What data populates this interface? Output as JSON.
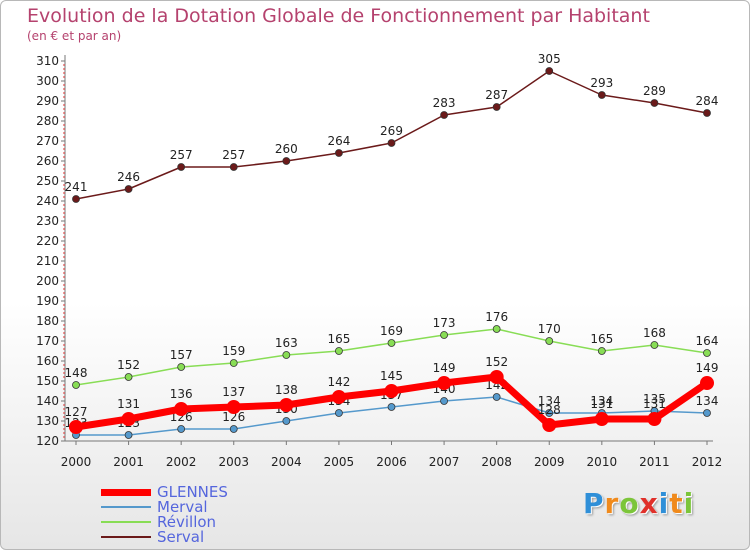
{
  "header": {
    "title": "Evolution de la Dotation Globale de Fonctionnement par Habitant",
    "subtitle": "(en € et par an)"
  },
  "brand": {
    "logo_letters": [
      {
        "ch": "P",
        "color": "#2f8fd8"
      },
      {
        "ch": "r",
        "color": "#f08a1c"
      },
      {
        "ch": "o",
        "color": "#7cc53a"
      },
      {
        "ch": "x",
        "color": "#e0302a"
      },
      {
        "ch": "i",
        "color": "#2f8fd8"
      },
      {
        "ch": "t",
        "color": "#f08a1c"
      },
      {
        "ch": "i",
        "color": "#7cc53a"
      }
    ]
  },
  "chart_data": {
    "type": "line",
    "title": "Evolution de la Dotation Globale de Fonctionnement par Habitant",
    "subtitle": "(en € et par an)",
    "x": [
      2000,
      2001,
      2002,
      2003,
      2004,
      2005,
      2006,
      2007,
      2008,
      2009,
      2010,
      2011,
      2012
    ],
    "ylim": [
      120,
      310
    ],
    "ytick_step": 10,
    "grid": false,
    "legend_position": "bottom-left",
    "series": [
      {
        "name": "Serval",
        "color": "#6b1a1a",
        "values": [
          241,
          246,
          257,
          257,
          260,
          264,
          269,
          283,
          287,
          305,
          293,
          289,
          284
        ]
      },
      {
        "name": "Révillon",
        "color": "#88dd55",
        "values": [
          148,
          152,
          157,
          159,
          163,
          165,
          169,
          173,
          176,
          170,
          165,
          168,
          164
        ]
      },
      {
        "name": "Merval",
        "color": "#5599cc",
        "values": [
          123,
          123,
          126,
          126,
          130,
          134,
          137,
          140,
          142,
          134,
          134,
          135,
          134
        ]
      },
      {
        "name": "GLENNES",
        "color": "#ff0000",
        "values": [
          127,
          131,
          136,
          137,
          138,
          142,
          145,
          149,
          152,
          128,
          131,
          131,
          149
        ]
      }
    ],
    "legend_order": [
      "GLENNES",
      "Merval",
      "Révillon",
      "Serval"
    ]
  }
}
